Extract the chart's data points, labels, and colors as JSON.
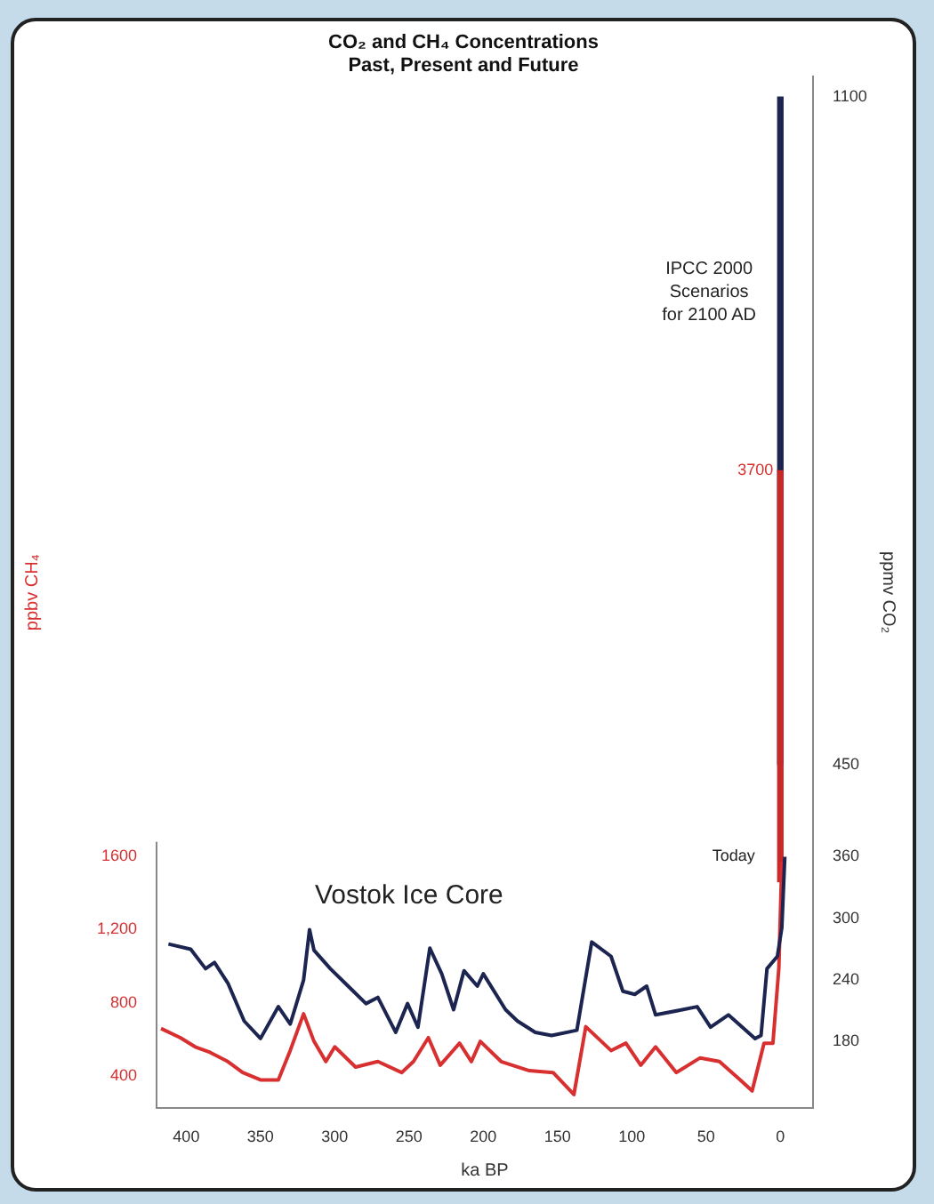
{
  "chart_data": {
    "type": "line",
    "title": "CO₂ and CH₄ Concentrations",
    "subtitle": "Past, Present and Future",
    "xlabel": "ka BP",
    "ylabel": "ppbv CH₄",
    "y2label": "ppmv CO₂",
    "xlim": [
      420,
      -22
    ],
    "xticks": [
      400,
      350,
      300,
      250,
      200,
      150,
      100,
      50,
      0
    ],
    "ylim": [
      225,
      5850
    ],
    "yticks": [
      400,
      800,
      {
        "value": 1200,
        "label": "1,200"
      },
      1600
    ],
    "y2lim": [
      115,
      1120
    ],
    "y2ticks": [
      180,
      240,
      300,
      360,
      450,
      1100
    ],
    "grid": false,
    "legend": false,
    "marker": "none",
    "line_style": "solid",
    "annotations": [
      "Vostok Ice Core",
      "IPCC 2000 Scenarios for 2100 AD",
      "Today",
      {
        "text": "3700",
        "x": 0,
        "y": 3700
      }
    ],
    "series": [
      {
        "axis": "y2",
        "color": "#1c2450",
        "x": [
          412,
          397,
          387,
          381,
          372,
          361,
          350,
          338,
          330,
          321,
          317,
          314,
          303,
          291,
          279,
          271,
          259,
          251,
          244,
          236,
          228,
          220,
          213,
          204,
          200,
          185,
          177,
          165,
          154,
          137,
          127,
          114,
          106,
          98,
          90,
          84,
          66,
          56,
          47,
          35,
          17,
          13,
          9,
          2,
          -1,
          -3
        ],
        "values": [
          275,
          270,
          251,
          257,
          237,
          200,
          183,
          214,
          197,
          240,
          289,
          269,
          251,
          234,
          217,
          223,
          189,
          217,
          194,
          271,
          246,
          211,
          249,
          234,
          246,
          211,
          200,
          189,
          186,
          191,
          277,
          263,
          229,
          226,
          234,
          206,
          211,
          214,
          194,
          206,
          183,
          186,
          251,
          263,
          291,
          360
        ]
      },
      {
        "axis": "y",
        "color": "#d83030",
        "x": [
          417,
          404,
          394,
          384,
          372,
          362,
          350,
          338,
          330,
          321,
          314,
          306,
          300,
          286,
          271,
          255,
          247,
          237,
          229,
          216,
          208,
          202,
          188,
          169,
          153,
          139,
          131,
          114,
          104,
          94,
          84,
          70,
          54,
          41,
          27,
          19,
          11,
          5,
          1,
          -1
        ],
        "values": [
          660,
          610,
          560,
          530,
          480,
          420,
          380,
          380,
          540,
          740,
          590,
          480,
          560,
          450,
          480,
          420,
          480,
          610,
          460,
          580,
          480,
          590,
          480,
          430,
          420,
          300,
          670,
          540,
          580,
          460,
          560,
          420,
          500,
          480,
          380,
          320,
          580,
          580,
          990,
          1570
        ]
      },
      {
        "type": "bar",
        "axis": "y2",
        "color": "#1c2450",
        "x": [
          0
        ],
        "base": [
          450
        ],
        "values": [
          650
        ]
      },
      {
        "type": "bar",
        "axis": "y",
        "color": "#c82828",
        "x": [
          0
        ],
        "base": [
          1460
        ],
        "values": [
          2240
        ]
      }
    ]
  }
}
